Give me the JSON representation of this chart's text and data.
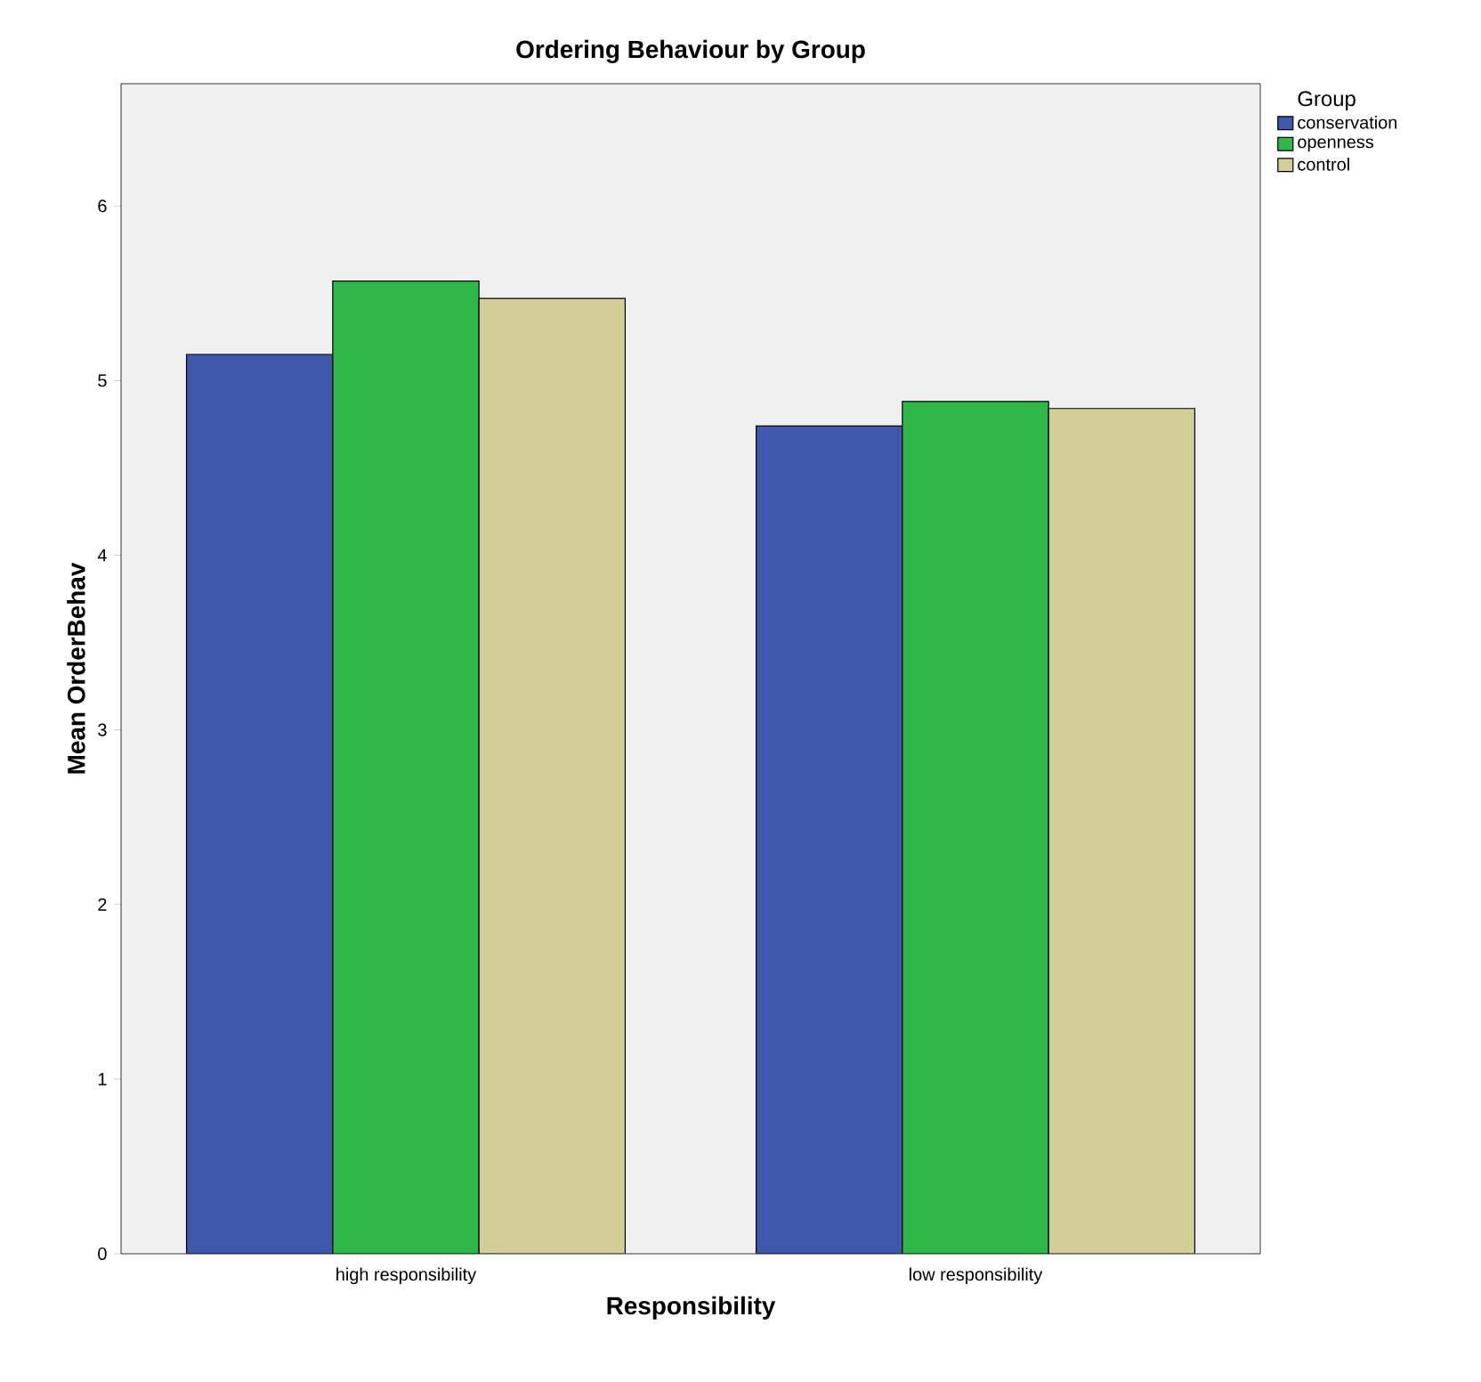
{
  "chart_data": {
    "type": "bar",
    "title": "Ordering Behaviour by Group",
    "xlabel": "Responsibility",
    "ylabel": "Mean OrderBehav",
    "legend_title": "Group",
    "categories": [
      "high responsibility",
      "low responsibility"
    ],
    "series": [
      {
        "name": "conservation",
        "color": "#3e58ac",
        "values": [
          5.15,
          4.74
        ]
      },
      {
        "name": "openness",
        "color": "#2eb848",
        "values": [
          5.57,
          4.88
        ]
      },
      {
        "name": "control",
        "color": "#d3ce97",
        "values": [
          5.47,
          4.84
        ]
      }
    ],
    "ylim": [
      0,
      6.7
    ],
    "yticks": [
      0,
      1,
      2,
      3,
      4,
      5,
      6
    ],
    "legend": "right",
    "grid": false
  }
}
